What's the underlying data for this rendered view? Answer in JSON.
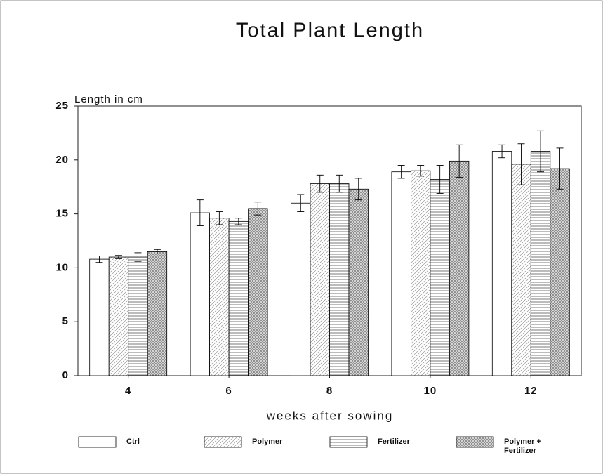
{
  "chart_data": {
    "type": "bar",
    "title": "Total Plant Length",
    "ylabel": "Length in cm",
    "xlabel": "weeks after sowing",
    "categories": [
      "4",
      "6",
      "8",
      "10",
      "12"
    ],
    "ylim": [
      0,
      25
    ],
    "yticks": [
      0,
      5,
      10,
      15,
      20,
      25
    ],
    "grid": false,
    "legend": "bottom",
    "series": [
      {
        "name": "Ctrl",
        "pattern": "none",
        "color": "#000000",
        "values": [
          10.8,
          15.1,
          16.0,
          18.9,
          20.8
        ],
        "errors": [
          0.3,
          1.2,
          0.8,
          0.6,
          0.6
        ]
      },
      {
        "name": "Polymer",
        "pattern": "diagonal",
        "color": "#000000",
        "values": [
          11.0,
          14.6,
          17.8,
          19.0,
          19.6
        ],
        "errors": [
          0.15,
          0.6,
          0.8,
          0.5,
          1.9
        ]
      },
      {
        "name": "Fertilizer",
        "pattern": "horizontal",
        "color": "#000000",
        "values": [
          11.0,
          14.3,
          17.8,
          18.2,
          20.8
        ],
        "errors": [
          0.4,
          0.3,
          0.8,
          1.3,
          1.9
        ]
      },
      {
        "name": "Polymer + Fertilizer",
        "pattern": "crosshatch",
        "color": "#000000",
        "values": [
          11.5,
          15.5,
          17.3,
          19.9,
          19.2
        ],
        "errors": [
          0.2,
          0.6,
          1.0,
          1.5,
          1.9
        ]
      }
    ]
  }
}
